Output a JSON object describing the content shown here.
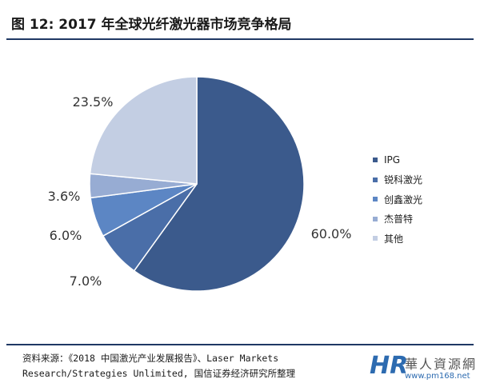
{
  "figure": {
    "title": "图 12:  2017 年全球光纤激光器市场竞争格局"
  },
  "chart_data": {
    "type": "pie",
    "unit": "%",
    "slices": [
      {
        "label": "IPG",
        "value": 60.0,
        "value_label": "60.0%",
        "color": "#3b5a8c"
      },
      {
        "label": "锐科激光",
        "value": 7.0,
        "value_label": "7.0%",
        "color": "#4a6ea8"
      },
      {
        "label": "创鑫激光",
        "value": 6.0,
        "value_label": "6.0%",
        "color": "#5c86c4"
      },
      {
        "label": "杰普特",
        "value": 3.6,
        "value_label": "3.6%",
        "color": "#97acd3"
      },
      {
        "label": "其他",
        "value": 23.5,
        "value_label": "23.5%",
        "color": "#c3cee3"
      }
    ],
    "legend_position": "right"
  },
  "source": {
    "line1": "资料来源：《2018 中国激光产业发展报告》、Laser Markets",
    "line2": "Research/Strategies Unlimited, 国信证券经济研究所整理"
  },
  "watermark": {
    "logo": "HR",
    "name": "華人資源網",
    "url": "www.pm168.net"
  }
}
